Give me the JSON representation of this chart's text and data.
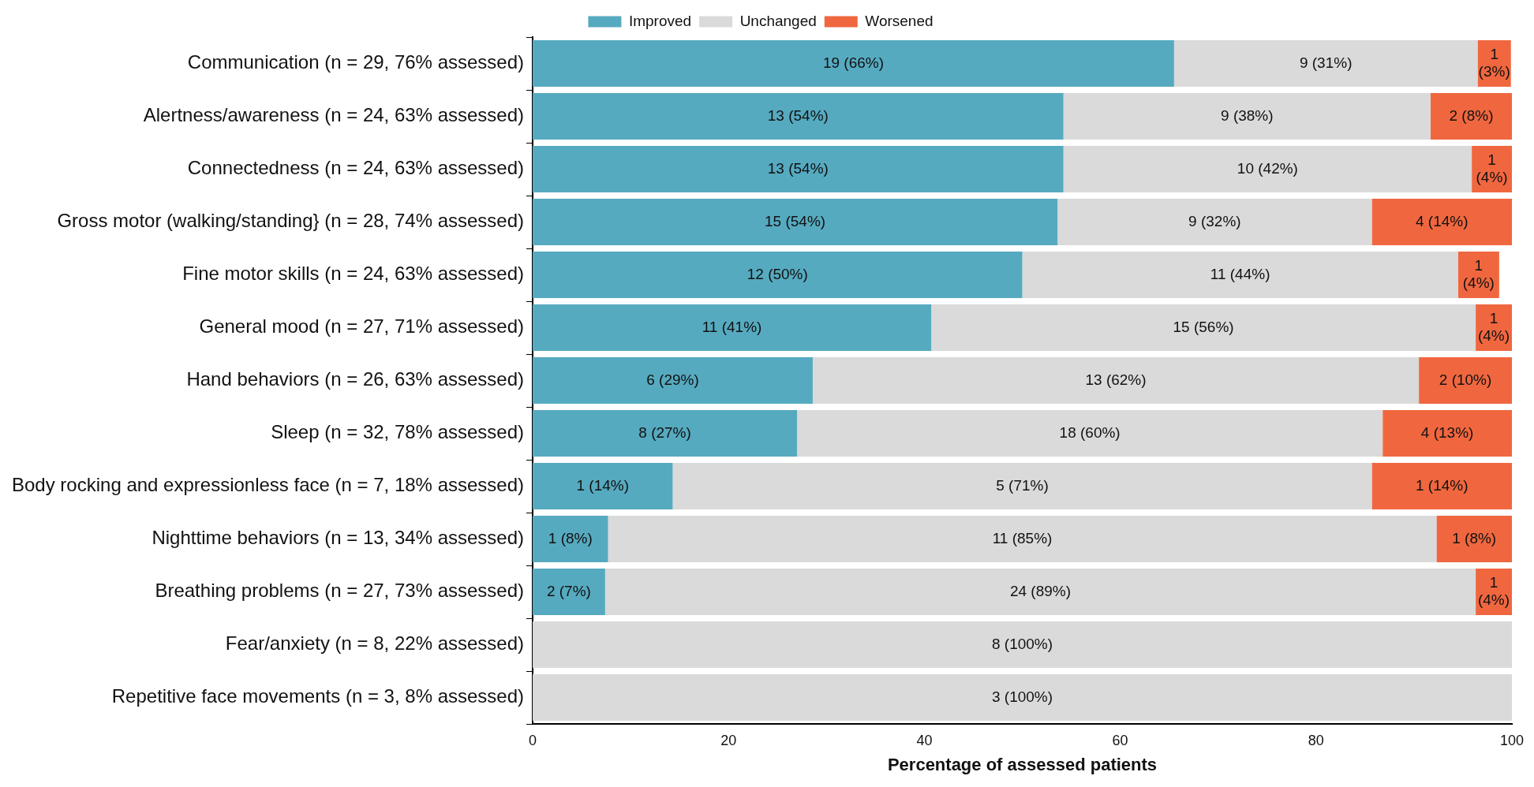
{
  "chart_data": {
    "type": "bar",
    "orientation": "horizontal",
    "stacked": true,
    "xlabel": "Percentage of assessed patients",
    "xlim": [
      0,
      100
    ],
    "xticks": [
      0,
      20,
      40,
      60,
      80,
      100
    ],
    "grid": false,
    "legend": "top",
    "categories": [
      "Communication (n = 29, 76% assessed)",
      "Alertness/awareness (n = 24, 63% assessed)",
      "Connectedness (n = 24, 63% assessed)",
      "Gross motor (walking/standing} (n = 28, 74% assessed)",
      "Fine motor skills (n = 24, 63% assessed)",
      "General mood (n = 27, 71% assessed)",
      "Hand behaviors (n = 26, 63% assessed)",
      "Sleep (n = 32, 78% assessed)",
      "Body rocking and expressionless face (n = 7, 18% assessed)",
      "Nighttime behaviors (n = 13, 34% assessed)",
      "Breathing problems (n = 27, 73% assessed)",
      "Fear/anxiety (n = 8, 22% assessed)",
      "Repetitive face movements (n = 3, 8% assessed)"
    ],
    "series": [
      {
        "name": "Improved",
        "color": "#56aac0",
        "values": [
          65.5,
          54.2,
          54.2,
          53.6,
          50,
          40.7,
          28.6,
          27,
          14.3,
          7.7,
          7.4,
          0,
          0
        ],
        "value_labels": [
          "19 (66%)",
          "13 (54%)",
          "13 (54%)",
          "15 (54%)",
          "12 (50%)",
          "11 (41%)",
          "6 (29%)",
          "8 (27%)",
          "1 (14%)",
          "1 (8%)",
          "2 (7%)",
          null,
          null
        ]
      },
      {
        "name": "Unchanged",
        "color": "#d9dad9",
        "values": [
          31,
          37.5,
          41.7,
          32.1,
          44.5,
          55.6,
          61.9,
          59.8,
          71.4,
          84.6,
          88.9,
          100,
          100
        ],
        "value_labels": [
          "9 (31%)",
          "9 (38%)",
          "10 (42%)",
          "9 (32%)",
          "11 (44%)",
          "15 (56%)",
          "13 (62%)",
          "18 (60%)",
          "5 (71%)",
          "11 (85%)",
          "24 (89%)",
          "8 (100%)",
          "3 (100%)"
        ]
      },
      {
        "name": "Worsened",
        "color": "#f0673f",
        "values": [
          3.4,
          8.3,
          4.1,
          14.3,
          4.2,
          3.7,
          9.5,
          13.2,
          14.3,
          7.7,
          3.7,
          0,
          0
        ],
        "value_labels": [
          "1 (3%)",
          "2 (8%)",
          "1 (4%)",
          "4 (14%)",
          "1 (4%)",
          "1 (4%)",
          "2 (10%)",
          "4 (13%)",
          "1 (14%)",
          "1 (8%)",
          "1 (4%)",
          null,
          null
        ]
      }
    ]
  }
}
